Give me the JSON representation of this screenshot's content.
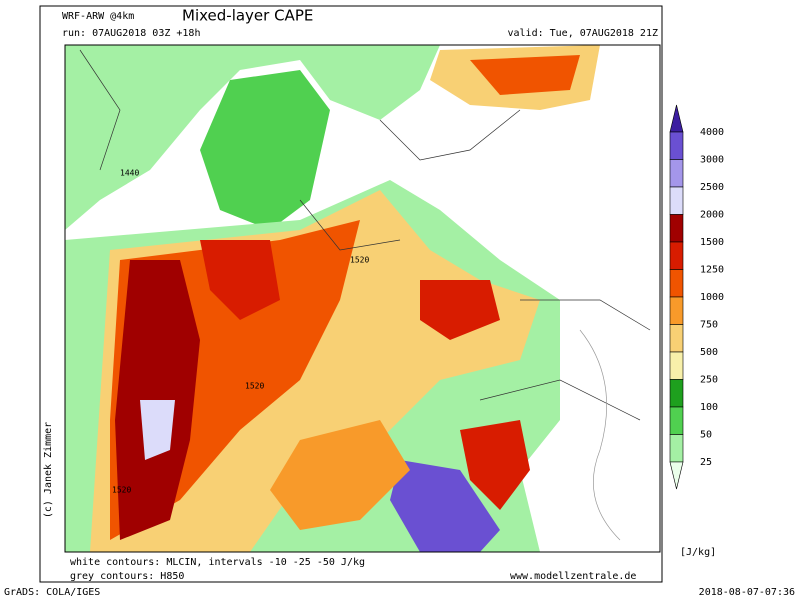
{
  "header": {
    "model": "WRF-ARW @4km",
    "title": "Mixed-layer CAPE",
    "run": "run: 07AUG2018 03Z +18h",
    "valid": "valid: Tue, 07AUG2018 21Z"
  },
  "credit": "(c) Janek Zimmer",
  "map": {
    "labels": [
      "1440",
      "1520",
      "1520",
      "1520"
    ]
  },
  "colorbar": {
    "levels": [
      4000,
      3000,
      2500,
      2000,
      1500,
      1250,
      1000,
      750,
      500,
      250,
      100,
      50,
      25
    ],
    "colors": [
      "#3c1ea0",
      "#6a50d2",
      "#a496ea",
      "#dcdcfa",
      "#a00000",
      "#d81c00",
      "#f05400",
      "#f89a2a",
      "#f8d074",
      "#f8f0aa",
      "#1ea01e",
      "#50d050",
      "#a4f0a4",
      "#eaffea"
    ],
    "unit": "[J/kg]"
  },
  "footer": {
    "white_contours": "white contours: MLCIN, intervals -10 -25 -50 J/kg",
    "grey_contours": "grey contours: H850",
    "website": "www.modellzentrale.de",
    "software": "GrADS: COLA/IGES",
    "timestamp": "2018-08-07-07:36"
  }
}
